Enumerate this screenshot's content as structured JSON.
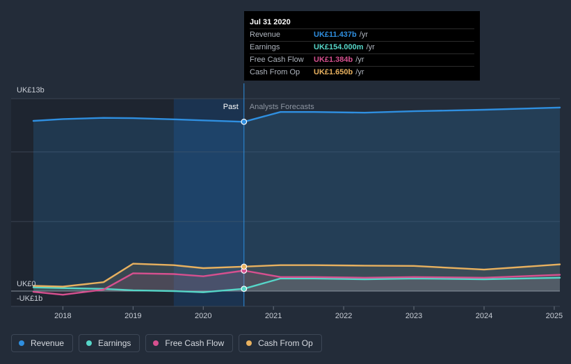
{
  "chart_data": {
    "type": "area",
    "currency_axis_labels": {
      "top": "UK£13b",
      "zero": "UK£0",
      "bottom": "-UK£1b"
    },
    "ylim": [
      -1,
      13
    ],
    "x_ticks": [
      "2018",
      "2019",
      "2020",
      "2021",
      "2022",
      "2023",
      "2024",
      "2025"
    ],
    "x_tick_values": [
      2018.0,
      2019.0,
      2020.0,
      2021.0,
      2022.0,
      2023.0,
      2024.0,
      2025.0
    ],
    "xlim": [
      2017.58,
      2025.08
    ],
    "past_label": "Past",
    "forecast_label": "Analysts Forecasts",
    "divider_x": 2020.58,
    "highlight_start_x": 2019.58,
    "series": [
      {
        "name": "Revenue",
        "color": "#2f8fe0",
        "points": [
          [
            2017.58,
            11.5
          ],
          [
            2018.0,
            11.62
          ],
          [
            2018.58,
            11.7
          ],
          [
            2019.0,
            11.68
          ],
          [
            2019.58,
            11.6
          ],
          [
            2020.0,
            11.53
          ],
          [
            2020.58,
            11.437
          ],
          [
            2021.1,
            12.1
          ],
          [
            2021.58,
            12.1
          ],
          [
            2022.3,
            12.05
          ],
          [
            2023.0,
            12.15
          ],
          [
            2024.0,
            12.25
          ],
          [
            2025.08,
            12.4
          ]
        ]
      },
      {
        "name": "Earnings",
        "color": "#56d6c8",
        "points": [
          [
            2017.58,
            0.25
          ],
          [
            2018.0,
            0.2
          ],
          [
            2018.58,
            0.15
          ],
          [
            2019.0,
            0.05
          ],
          [
            2019.58,
            0.0
          ],
          [
            2020.0,
            -0.08
          ],
          [
            2020.58,
            0.154
          ],
          [
            2021.1,
            0.85
          ],
          [
            2021.58,
            0.85
          ],
          [
            2022.3,
            0.8
          ],
          [
            2023.0,
            0.85
          ],
          [
            2024.0,
            0.8
          ],
          [
            2025.08,
            0.9
          ]
        ]
      },
      {
        "name": "Free Cash Flow",
        "color": "#d6508f",
        "points": [
          [
            2017.58,
            -0.05
          ],
          [
            2018.0,
            -0.25
          ],
          [
            2018.58,
            0.1
          ],
          [
            2019.0,
            1.2
          ],
          [
            2019.58,
            1.15
          ],
          [
            2020.0,
            1.0
          ],
          [
            2020.58,
            1.384
          ],
          [
            2021.1,
            0.95
          ],
          [
            2021.58,
            0.95
          ],
          [
            2022.3,
            0.9
          ],
          [
            2023.0,
            0.95
          ],
          [
            2024.0,
            0.9
          ],
          [
            2025.08,
            1.1
          ]
        ]
      },
      {
        "name": "Cash From Op",
        "color": "#e8b15f",
        "points": [
          [
            2017.58,
            0.35
          ],
          [
            2018.0,
            0.3
          ],
          [
            2018.58,
            0.6
          ],
          [
            2019.0,
            1.85
          ],
          [
            2019.58,
            1.75
          ],
          [
            2020.0,
            1.55
          ],
          [
            2020.58,
            1.65
          ],
          [
            2021.1,
            1.75
          ],
          [
            2021.58,
            1.75
          ],
          [
            2022.3,
            1.72
          ],
          [
            2023.0,
            1.7
          ],
          [
            2024.0,
            1.45
          ],
          [
            2025.08,
            1.8
          ]
        ]
      }
    ]
  },
  "tooltip": {
    "title": "Jul 31 2020",
    "rows": [
      {
        "label": "Revenue",
        "value": "UK£11.437b",
        "unit": "/yr",
        "color": "#2f8fe0"
      },
      {
        "label": "Earnings",
        "value": "UK£154.000m",
        "unit": "/yr",
        "color": "#56d6c8"
      },
      {
        "label": "Free Cash Flow",
        "value": "UK£1.384b",
        "unit": "/yr",
        "color": "#d6508f"
      },
      {
        "label": "Cash From Op",
        "value": "UK£1.650b",
        "unit": "/yr",
        "color": "#e8b15f"
      }
    ]
  },
  "legend": [
    {
      "label": "Revenue",
      "color": "#2f8fe0"
    },
    {
      "label": "Earnings",
      "color": "#56d6c8"
    },
    {
      "label": "Free Cash Flow",
      "color": "#d6508f"
    },
    {
      "label": "Cash From Op",
      "color": "#e8b15f"
    }
  ]
}
